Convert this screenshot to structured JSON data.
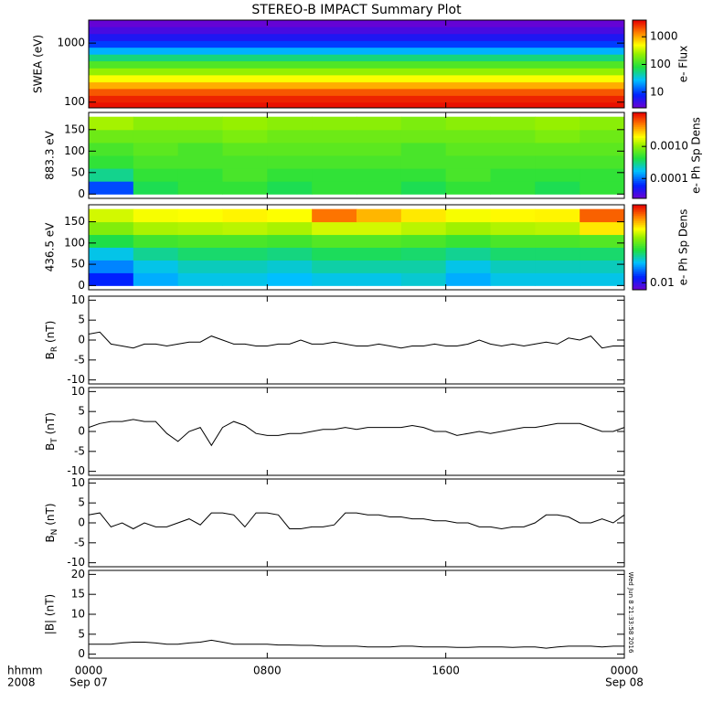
{
  "title": "STEREO-B IMPACT Summary Plot",
  "timestamp": "Wed Jun 8 21:33:58 2016",
  "x_axis": {
    "xlim": [
      0,
      24
    ],
    "row_labels": [
      "hhmm",
      "2008"
    ],
    "xticks": [
      {
        "value": 0,
        "label": "0000",
        "date": "Sep 07"
      },
      {
        "value": 8,
        "label": "0800"
      },
      {
        "value": 16,
        "label": "1600"
      },
      {
        "value": 24,
        "label": "0000",
        "date": "Sep 08"
      }
    ]
  },
  "chart_data": [
    {
      "type": "heatmap",
      "ylabel": "SWEA (eV)",
      "ylog": true,
      "ylim": [
        80,
        2450
      ],
      "yticks": [
        100,
        1000
      ],
      "ybins": [
        80,
        100,
        130,
        170,
        220,
        290,
        380,
        500,
        650,
        850,
        1100,
        1450,
        1900,
        2450
      ],
      "values": [
        3500,
        3000,
        2000,
        1000,
        500,
        250,
        130,
        60,
        25,
        10,
        6,
        4,
        3
      ],
      "colormap": "rainbow",
      "zlog": true,
      "zlim": [
        2.7,
        4000
      ],
      "zticks": [
        10,
        100,
        1000
      ],
      "zlabel": "e- Flux"
    },
    {
      "type": "heatmap",
      "ylabel": "883.3 eV",
      "ylim": [
        -10,
        190
      ],
      "yticks": [
        0,
        50,
        100,
        150
      ],
      "ybins": [
        0,
        30,
        60,
        90,
        120,
        150,
        180
      ],
      "xbins": [
        0,
        2,
        4,
        6,
        8,
        10,
        12,
        14,
        16,
        18,
        20,
        22,
        24
      ],
      "values": [
        [
          8e-05,
          0.0004,
          0.0005,
          0.0005,
          0.0004,
          0.0005,
          0.0005,
          0.0004,
          0.0005,
          0.0005,
          0.0004,
          0.0005
        ],
        [
          0.0003,
          0.0005,
          0.0005,
          0.0006,
          0.0005,
          0.0005,
          0.0005,
          0.0005,
          0.0006,
          0.0005,
          0.0005,
          0.0005
        ],
        [
          0.0005,
          0.0006,
          0.0006,
          0.0006,
          0.0006,
          0.0006,
          0.0006,
          0.0006,
          0.0006,
          0.0006,
          0.0006,
          0.0006
        ],
        [
          0.0006,
          0.0007,
          0.0006,
          0.0007,
          0.0007,
          0.0007,
          0.0007,
          0.0006,
          0.0007,
          0.0007,
          0.0007,
          0.0007
        ],
        [
          0.0008,
          0.0008,
          0.0008,
          0.0009,
          0.0008,
          0.0008,
          0.0008,
          0.0008,
          0.0008,
          0.0008,
          0.0009,
          0.0008
        ],
        [
          0.0012,
          0.001,
          0.001,
          0.0011,
          0.001,
          0.001,
          0.001,
          0.0009,
          0.001,
          0.001,
          0.0011,
          0.001
        ]
      ],
      "colormap": "rainbow",
      "zlog": true,
      "zlim": [
        2.4e-05,
        0.0115
      ],
      "zticks": [
        {
          "value": 0.001,
          "label": "0.0010"
        },
        {
          "value": 0.0001,
          "label": "0.0001"
        }
      ],
      "zlabel": "e- Ph Sp Dens"
    },
    {
      "type": "heatmap",
      "ylabel": "436.5 eV",
      "ylim": [
        -10,
        190
      ],
      "yticks": [
        0,
        50,
        100,
        150
      ],
      "ybins": [
        0,
        30,
        60,
        90,
        120,
        150,
        180
      ],
      "xbins": [
        0,
        2,
        4,
        6,
        8,
        10,
        12,
        14,
        16,
        18,
        20,
        22,
        24
      ],
      "values": [
        [
          0.012,
          0.018,
          0.02,
          0.02,
          0.019,
          0.02,
          0.02,
          0.021,
          0.018,
          0.02,
          0.02,
          0.02
        ],
        [
          0.016,
          0.02,
          0.022,
          0.022,
          0.021,
          0.023,
          0.023,
          0.023,
          0.02,
          0.022,
          0.022,
          0.022
        ],
        [
          0.02,
          0.024,
          0.026,
          0.026,
          0.025,
          0.027,
          0.027,
          0.026,
          0.024,
          0.026,
          0.026,
          0.026
        ],
        [
          0.028,
          0.032,
          0.033,
          0.033,
          0.032,
          0.034,
          0.034,
          0.033,
          0.031,
          0.033,
          0.033,
          0.034
        ],
        [
          0.04,
          0.045,
          0.046,
          0.047,
          0.045,
          0.05,
          0.05,
          0.047,
          0.044,
          0.046,
          0.047,
          0.06
        ],
        [
          0.05,
          0.055,
          0.056,
          0.058,
          0.056,
          0.085,
          0.07,
          0.06,
          0.055,
          0.057,
          0.058,
          0.09
        ]
      ],
      "colormap": "rainbow",
      "zlog": true,
      "zlim": [
        0.008,
        0.12
      ],
      "zticks": [
        0.01
      ],
      "zlabel": "e- Ph Sp Dens"
    },
    {
      "type": "line",
      "ylabel": "B",
      "ylabel_sub": "R",
      "ylabel_unit": " (nT)",
      "ylim": [
        -11,
        11
      ],
      "yticks": [
        -10,
        -5,
        0,
        5,
        10
      ],
      "color": "#000000",
      "x": [
        0,
        0.5,
        1,
        1.5,
        2,
        2.5,
        3,
        3.5,
        4,
        4.5,
        5,
        5.5,
        6,
        6.5,
        7,
        7.5,
        8,
        8.5,
        9,
        9.5,
        10,
        10.5,
        11,
        11.5,
        12,
        12.5,
        13,
        13.5,
        14,
        14.5,
        15,
        15.5,
        16,
        16.5,
        17,
        17.5,
        18,
        18.5,
        19,
        19.5,
        20,
        20.5,
        21,
        21.5,
        22,
        22.5,
        23,
        23.5,
        24
      ],
      "values": [
        1.5,
        2,
        -1,
        -1.5,
        -2,
        -1,
        -1,
        -1.5,
        -1,
        -0.5,
        -0.5,
        1,
        0,
        -1,
        -1,
        -1.5,
        -1.5,
        -1,
        -1,
        0,
        -1,
        -1,
        -0.5,
        -1,
        -1.5,
        -1.5,
        -1,
        -1.5,
        -2,
        -1.5,
        -1.5,
        -1,
        -1.5,
        -1.5,
        -1,
        0,
        -1,
        -1.5,
        -1,
        -1.5,
        -1,
        -0.5,
        -1,
        0.5,
        0,
        1,
        -2,
        -1.5,
        -1.5
      ]
    },
    {
      "type": "line",
      "ylabel": "B",
      "ylabel_sub": "T",
      "ylabel_unit": " (nT)",
      "ylim": [
        -11,
        11
      ],
      "yticks": [
        -10,
        -5,
        0,
        5,
        10
      ],
      "color": "#000000",
      "x": [
        0,
        0.5,
        1,
        1.5,
        2,
        2.5,
        3,
        3.5,
        4,
        4.5,
        5,
        5.5,
        6,
        6.5,
        7,
        7.5,
        8,
        8.5,
        9,
        9.5,
        10,
        10.5,
        11,
        11.5,
        12,
        12.5,
        13,
        13.5,
        14,
        14.5,
        15,
        15.5,
        16,
        16.5,
        17,
        17.5,
        18,
        18.5,
        19,
        19.5,
        20,
        20.5,
        21,
        21.5,
        22,
        22.5,
        23,
        23.5,
        24
      ],
      "values": [
        1,
        2,
        2.5,
        2.5,
        3,
        2.5,
        2.5,
        -0.5,
        -2.5,
        0,
        1,
        -3.5,
        1,
        2.5,
        1.5,
        -0.5,
        -1,
        -1,
        -0.5,
        -0.5,
        0,
        0.5,
        0.5,
        1,
        0.5,
        1,
        1,
        1,
        1,
        1.5,
        1,
        0,
        0,
        -1,
        -0.5,
        0,
        -0.5,
        0,
        0.5,
        1,
        1,
        1.5,
        2,
        2,
        2,
        1,
        0,
        0,
        1
      ]
    },
    {
      "type": "line",
      "ylabel": "B",
      "ylabel_sub": "N",
      "ylabel_unit": " (nT)",
      "ylim": [
        -11,
        11
      ],
      "yticks": [
        -10,
        -5,
        0,
        5,
        10
      ],
      "color": "#000000",
      "x": [
        0,
        0.5,
        1,
        1.5,
        2,
        2.5,
        3,
        3.5,
        4,
        4.5,
        5,
        5.5,
        6,
        6.5,
        7,
        7.5,
        8,
        8.5,
        9,
        9.5,
        10,
        10.5,
        11,
        11.5,
        12,
        12.5,
        13,
        13.5,
        14,
        14.5,
        15,
        15.5,
        16,
        16.5,
        17,
        17.5,
        18,
        18.5,
        19,
        19.5,
        20,
        20.5,
        21,
        21.5,
        22,
        22.5,
        23,
        23.5,
        24
      ],
      "values": [
        2,
        2.5,
        -1,
        0,
        -1.5,
        0,
        -1,
        -1,
        0,
        1,
        -0.5,
        2.5,
        2.5,
        2,
        -1,
        2.5,
        2.5,
        2,
        -1.5,
        -1.5,
        -1,
        -1,
        -0.5,
        2.5,
        2.5,
        2,
        2,
        1.5,
        1.5,
        1,
        1,
        0.5,
        0.5,
        0,
        0,
        -1,
        -1,
        -1.5,
        -1,
        -1,
        0,
        2,
        2,
        1.5,
        0,
        0,
        1,
        0,
        2
      ]
    },
    {
      "type": "line",
      "ylabel": "|B| (nT)",
      "ylim": [
        -1,
        21
      ],
      "yticks": [
        0,
        5,
        10,
        15,
        20
      ],
      "color": "#000000",
      "x": [
        0,
        0.5,
        1,
        1.5,
        2,
        2.5,
        3,
        3.5,
        4,
        4.5,
        5,
        5.5,
        6,
        6.5,
        7,
        7.5,
        8,
        8.5,
        9,
        9.5,
        10,
        10.5,
        11,
        11.5,
        12,
        12.5,
        13,
        13.5,
        14,
        14.5,
        15,
        15.5,
        16,
        16.5,
        17,
        17.5,
        18,
        18.5,
        19,
        19.5,
        20,
        20.5,
        21,
        21.5,
        22,
        22.5,
        23,
        23.5,
        24
      ],
      "values": [
        2.5,
        2.5,
        2.5,
        2.8,
        3,
        3,
        2.8,
        2.5,
        2.5,
        2.8,
        3,
        3.5,
        3,
        2.5,
        2.5,
        2.5,
        2.5,
        2.3,
        2.3,
        2.2,
        2.2,
        2,
        2,
        2,
        2,
        1.8,
        1.8,
        1.8,
        2,
        2,
        1.8,
        1.8,
        1.8,
        1.7,
        1.7,
        1.8,
        1.8,
        1.8,
        1.7,
        1.8,
        1.8,
        1.5,
        1.8,
        2,
        2,
        2,
        1.8,
        2,
        2
      ]
    }
  ]
}
